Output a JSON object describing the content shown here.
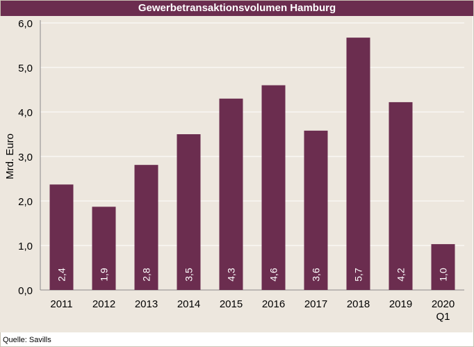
{
  "chart_data": {
    "type": "bar",
    "title": "Gewerbetransaktionsvolumen Hamburg",
    "ylabel": "Mrd. Euro",
    "xlabel": "",
    "ylim": [
      0,
      6
    ],
    "yticks": [
      "0,0",
      "1,0",
      "2,0",
      "3,0",
      "4,0",
      "5,0",
      "6,0"
    ],
    "categories": [
      "2011",
      "2012",
      "2013",
      "2014",
      "2015",
      "2016",
      "2017",
      "2018",
      "2019",
      "2020 Q1"
    ],
    "category_lines": [
      [
        "2011"
      ],
      [
        "2012"
      ],
      [
        "2013"
      ],
      [
        "2014"
      ],
      [
        "2015"
      ],
      [
        "2016"
      ],
      [
        "2017"
      ],
      [
        "2018"
      ],
      [
        "2019"
      ],
      [
        "2020",
        "Q1"
      ]
    ],
    "values": [
      2.37,
      1.87,
      2.81,
      3.5,
      4.3,
      4.6,
      3.58,
      5.67,
      4.22,
      1.03
    ],
    "value_labels": [
      "2,4",
      "1,9",
      "2,8",
      "3,5",
      "4,3",
      "4,6",
      "3,6",
      "5,7",
      "4,2",
      "1,0"
    ],
    "grid": true,
    "bar_color": "#6b2d4f",
    "background_color": "#ede7de",
    "source": "Quelle: Savills"
  }
}
